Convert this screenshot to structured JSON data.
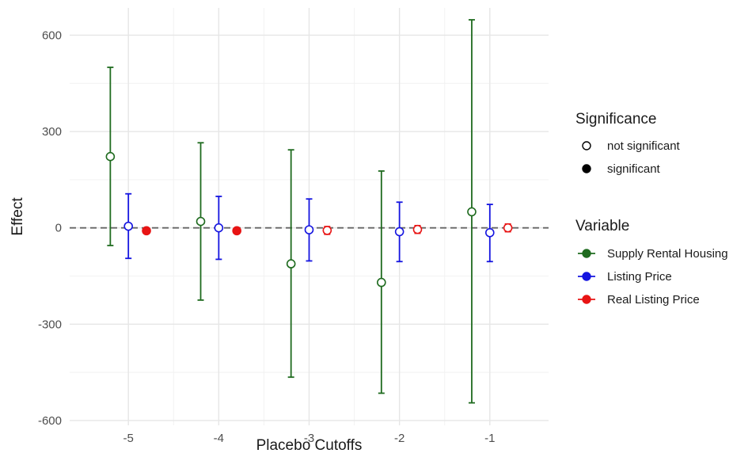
{
  "chart_data": {
    "type": "scatter",
    "xlabel": "Placebo Cutoffs",
    "ylabel": "Effect",
    "x_ticks": [
      -5,
      -4,
      -3,
      -2,
      -1
    ],
    "x_tick_labels": [
      "-5",
      "-4",
      "-3",
      "-2",
      "-1"
    ],
    "y_ticks": [
      600,
      300,
      0,
      -300,
      -600
    ],
    "y_tick_labels": [
      "600",
      "300",
      "0",
      "-300",
      "-600"
    ],
    "xlim": [
      -5.65,
      -0.35
    ],
    "ylim": [
      -615,
      685
    ],
    "grid": true,
    "reference_line": {
      "y": 0,
      "style": "dashed"
    },
    "legend_position": "right",
    "legends": [
      {
        "title": "Significance",
        "items": [
          {
            "label": "not significant",
            "shape": "open-circle"
          },
          {
            "label": "significant",
            "shape": "filled-circle"
          }
        ]
      },
      {
        "title": "Variable",
        "items": [
          {
            "label": "Supply Rental Housing",
            "color": "#1f6b1f"
          },
          {
            "label": "Listing Price",
            "color": "#1515e0"
          },
          {
            "label": "Real Listing Price",
            "color": "#e81414"
          }
        ]
      }
    ],
    "series": [
      {
        "name": "Supply Rental Housing",
        "color": "#1f6b1f",
        "offset": -0.2,
        "points": [
          {
            "x": -5,
            "y": 222,
            "lo": -55,
            "hi": 500,
            "significant": false
          },
          {
            "x": -4,
            "y": 20,
            "lo": -225,
            "hi": 265,
            "significant": false
          },
          {
            "x": -3,
            "y": -112,
            "lo": -465,
            "hi": 243,
            "significant": false
          },
          {
            "x": -2,
            "y": -170,
            "lo": -515,
            "hi": 177,
            "significant": false
          },
          {
            "x": -1,
            "y": 50,
            "lo": -545,
            "hi": 648,
            "significant": false
          }
        ]
      },
      {
        "name": "Listing Price",
        "color": "#1515e0",
        "offset": 0,
        "points": [
          {
            "x": -5,
            "y": 5,
            "lo": -95,
            "hi": 106,
            "significant": false
          },
          {
            "x": -4,
            "y": 0,
            "lo": -98,
            "hi": 98,
            "significant": false
          },
          {
            "x": -3,
            "y": -6,
            "lo": -103,
            "hi": 90,
            "significant": false
          },
          {
            "x": -2,
            "y": -12,
            "lo": -105,
            "hi": 80,
            "significant": false
          },
          {
            "x": -1,
            "y": -15,
            "lo": -105,
            "hi": 73,
            "significant": false
          }
        ]
      },
      {
        "name": "Real Listing Price",
        "color": "#e81414",
        "offset": 0.2,
        "points": [
          {
            "x": -5,
            "y": -9,
            "lo": -13,
            "hi": -5,
            "significant": true
          },
          {
            "x": -4,
            "y": -9,
            "lo": -13,
            "hi": -5,
            "significant": true
          },
          {
            "x": -3,
            "y": -8,
            "lo": -20,
            "hi": 4,
            "significant": false
          },
          {
            "x": -2,
            "y": -5,
            "lo": -17,
            "hi": 7,
            "significant": false
          },
          {
            "x": -1,
            "y": 0,
            "lo": -12,
            "hi": 12,
            "significant": false
          }
        ]
      }
    ]
  }
}
